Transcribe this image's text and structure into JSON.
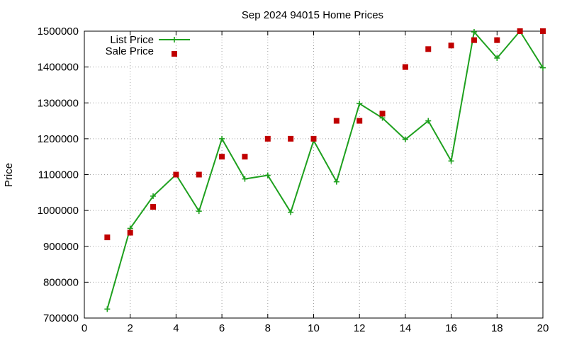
{
  "chart_data": {
    "type": "line",
    "title": "Sep 2024 94015 Home Prices",
    "xlabel": "",
    "ylabel": "Price",
    "xlim": [
      0,
      20
    ],
    "ylim": [
      700000,
      1500000
    ],
    "x_ticks": [
      "0",
      "2",
      "4",
      "6",
      "8",
      "10",
      "12",
      "14",
      "16",
      "18",
      "20"
    ],
    "y_ticks": [
      "700000",
      "800000",
      "900000",
      "1000000",
      "1100000",
      "1200000",
      "1300000",
      "1400000",
      "1500000"
    ],
    "grid": true,
    "legend_position": "top-left",
    "series": [
      {
        "name": "List Price",
        "style": "line+cross",
        "color": "#1ea01e",
        "points": [
          [
            1,
            725000
          ],
          [
            2,
            950000
          ],
          [
            3,
            1040000
          ],
          [
            4,
            1100000
          ],
          [
            5,
            998000
          ],
          [
            6,
            1200000
          ],
          [
            7,
            1088000
          ],
          [
            8,
            1098000
          ],
          [
            9,
            995000
          ],
          [
            10,
            1195000
          ],
          [
            11,
            1080000
          ],
          [
            12,
            1298000
          ],
          [
            13,
            1258000
          ],
          [
            14,
            1198000
          ],
          [
            15,
            1250000
          ],
          [
            16,
            1138000
          ],
          [
            17,
            1498000
          ],
          [
            18,
            1425000
          ],
          [
            19,
            1500000
          ],
          [
            20,
            1398000
          ]
        ]
      },
      {
        "name": "Sale Price",
        "style": "square",
        "color": "#c00000",
        "points": [
          [
            1,
            925000
          ],
          [
            2,
            938000
          ],
          [
            3,
            1010000
          ],
          [
            4,
            1100000
          ],
          [
            5,
            1100000
          ],
          [
            6,
            1150000
          ],
          [
            7,
            1150000
          ],
          [
            8,
            1200000
          ],
          [
            9,
            1200000
          ],
          [
            10,
            1200000
          ],
          [
            11,
            1250000
          ],
          [
            12,
            1250000
          ],
          [
            13,
            1270000
          ],
          [
            14,
            1400000
          ],
          [
            15,
            1450000
          ],
          [
            16,
            1460000
          ],
          [
            17,
            1475000
          ],
          [
            18,
            1475000
          ],
          [
            19,
            1500000
          ],
          [
            20,
            1500000
          ]
        ]
      }
    ]
  }
}
